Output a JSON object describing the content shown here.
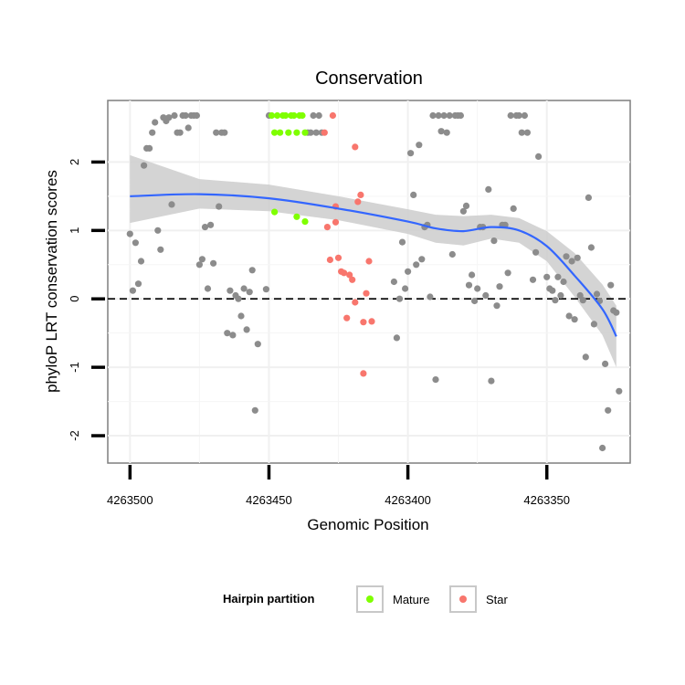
{
  "chart_data": {
    "type": "scatter",
    "title": "Conservation",
    "xlabel": "Genomic Position",
    "ylabel": "phyloP LRT conservation scores",
    "xlim": [
      4263508,
      4263320
    ],
    "ylim": [
      -2.4,
      2.9
    ],
    "x_reversed": true,
    "x_ticks": [
      4263500,
      4263450,
      4263400,
      4263350
    ],
    "x_tick_labels": [
      "4263500",
      "4263450",
      "4263400",
      "4263350"
    ],
    "y_ticks": [
      -2,
      -1,
      0,
      1,
      2
    ],
    "y_tick_labels": [
      "-2",
      "-1",
      "0",
      "1",
      "2"
    ],
    "reference_line": {
      "y": 0,
      "style": "dashed"
    },
    "legend": {
      "title": "Hairpin partition",
      "position": "bottom",
      "entries": [
        {
          "label": "Mature",
          "color": "#7fff00"
        },
        {
          "label": "Star",
          "color": "#f8766d"
        }
      ]
    },
    "colors": {
      "other": "#8c8c8c",
      "smooth": "#3366ff",
      "band": "#cccccc"
    },
    "smooth": {
      "x": [
        4263500,
        4263475,
        4263450,
        4263425,
        4263400,
        4263390,
        4263380,
        4263370,
        4263360,
        4263350,
        4263340,
        4263330,
        4263325
      ],
      "y": [
        1.5,
        1.53,
        1.47,
        1.32,
        1.13,
        1.03,
        0.99,
        1.05,
        1.0,
        0.77,
        0.34,
        -0.15,
        -0.55
      ],
      "lower": [
        1.11,
        1.32,
        1.28,
        1.15,
        0.95,
        0.82,
        0.78,
        0.88,
        0.82,
        0.55,
        0.03,
        -0.53,
        -1.0
      ],
      "upper": [
        2.1,
        1.75,
        1.67,
        1.5,
        1.31,
        1.23,
        1.21,
        1.23,
        1.18,
        0.99,
        0.67,
        0.21,
        -0.1
      ]
    },
    "series": [
      {
        "name": "Other",
        "points": [
          [
            4263500,
            0.95
          ],
          [
            4263499,
            0.12
          ],
          [
            4263498,
            0.82
          ],
          [
            4263497,
            0.22
          ],
          [
            4263496,
            0.55
          ],
          [
            4263495,
            1.95
          ],
          [
            4263494,
            2.2
          ],
          [
            4263493,
            2.2
          ],
          [
            4263492,
            2.43
          ],
          [
            4263491,
            2.58
          ],
          [
            4263490,
            1.0
          ],
          [
            4263489,
            0.72
          ],
          [
            4263488,
            2.65
          ],
          [
            4263487,
            2.6
          ],
          [
            4263486,
            2.65
          ],
          [
            4263485,
            1.38
          ],
          [
            4263484,
            2.68
          ],
          [
            4263483,
            2.43
          ],
          [
            4263482,
            2.43
          ],
          [
            4263481,
            2.68
          ],
          [
            4263480,
            2.68
          ],
          [
            4263479,
            2.5
          ],
          [
            4263478,
            2.68
          ],
          [
            4263477,
            2.68
          ],
          [
            4263476,
            2.68
          ],
          [
            4263475,
            0.5
          ],
          [
            4263474,
            0.58
          ],
          [
            4263473,
            1.05
          ],
          [
            4263472,
            0.15
          ],
          [
            4263471,
            1.08
          ],
          [
            4263470,
            0.52
          ],
          [
            4263469,
            2.43
          ],
          [
            4263468,
            1.35
          ],
          [
            4263467,
            2.43
          ],
          [
            4263466,
            2.43
          ],
          [
            4263465,
            -0.5
          ],
          [
            4263464,
            0.12
          ],
          [
            4263463,
            -0.53
          ],
          [
            4263462,
            0.05
          ],
          [
            4263461,
            0.0
          ],
          [
            4263460,
            -0.25
          ],
          [
            4263459,
            0.15
          ],
          [
            4263458,
            -0.45
          ],
          [
            4263457,
            0.1
          ],
          [
            4263456,
            0.42
          ],
          [
            4263455,
            -1.63
          ],
          [
            4263454,
            -0.66
          ],
          [
            4263451,
            0.14
          ],
          [
            4263450,
            2.68
          ],
          [
            4263436,
            2.43
          ],
          [
            4263435,
            2.43
          ],
          [
            4263434,
            2.68
          ],
          [
            4263433,
            2.43
          ],
          [
            4263432,
            2.68
          ],
          [
            4263431,
            2.43
          ],
          [
            4263405,
            0.25
          ],
          [
            4263404,
            -0.57
          ],
          [
            4263403,
            0.0
          ],
          [
            4263402,
            0.83
          ],
          [
            4263401,
            0.15
          ],
          [
            4263400,
            0.4
          ],
          [
            4263399,
            2.13
          ],
          [
            4263398,
            1.52
          ],
          [
            4263397,
            0.5
          ],
          [
            4263396,
            2.25
          ],
          [
            4263395,
            0.58
          ],
          [
            4263394,
            1.05
          ],
          [
            4263393,
            1.08
          ],
          [
            4263392,
            0.03
          ],
          [
            4263391,
            2.68
          ],
          [
            4263390,
            -1.18
          ],
          [
            4263389,
            2.68
          ],
          [
            4263388,
            2.45
          ],
          [
            4263387,
            2.68
          ],
          [
            4263386,
            2.43
          ],
          [
            4263385,
            2.68
          ],
          [
            4263384,
            0.65
          ],
          [
            4263383,
            2.68
          ],
          [
            4263382,
            2.68
          ],
          [
            4263381,
            2.68
          ],
          [
            4263380,
            1.28
          ],
          [
            4263379,
            1.36
          ],
          [
            4263378,
            0.2
          ],
          [
            4263377,
            0.35
          ],
          [
            4263376,
            -0.03
          ],
          [
            4263375,
            0.15
          ],
          [
            4263374,
            1.05
          ],
          [
            4263373,
            1.05
          ],
          [
            4263372,
            0.05
          ],
          [
            4263371,
            1.6
          ],
          [
            4263370,
            -1.2
          ],
          [
            4263369,
            0.85
          ],
          [
            4263368,
            -0.1
          ],
          [
            4263367,
            0.18
          ],
          [
            4263366,
            1.08
          ],
          [
            4263365,
            1.08
          ],
          [
            4263364,
            0.38
          ],
          [
            4263363,
            2.68
          ],
          [
            4263362,
            1.32
          ],
          [
            4263361,
            2.68
          ],
          [
            4263360,
            2.68
          ],
          [
            4263359,
            2.43
          ],
          [
            4263358,
            2.68
          ],
          [
            4263357,
            2.43
          ],
          [
            4263355,
            0.28
          ],
          [
            4263354,
            0.68
          ],
          [
            4263353,
            2.08
          ],
          [
            4263350,
            0.32
          ],
          [
            4263349,
            0.15
          ],
          [
            4263348,
            0.12
          ],
          [
            4263347,
            -0.02
          ],
          [
            4263346,
            0.32
          ],
          [
            4263345,
            0.05
          ],
          [
            4263344,
            0.25
          ],
          [
            4263343,
            0.62
          ],
          [
            4263342,
            -0.25
          ],
          [
            4263341,
            0.55
          ],
          [
            4263340,
            -0.3
          ],
          [
            4263339,
            0.6
          ],
          [
            4263338,
            0.05
          ],
          [
            4263337,
            -0.02
          ],
          [
            4263336,
            -0.85
          ],
          [
            4263335,
            1.48
          ],
          [
            4263334,
            0.75
          ],
          [
            4263333,
            -0.37
          ],
          [
            4263332,
            0.07
          ],
          [
            4263331,
            -0.03
          ],
          [
            4263330,
            -2.18
          ],
          [
            4263329,
            -0.95
          ],
          [
            4263328,
            -1.63
          ],
          [
            4263327,
            0.2
          ],
          [
            4263326,
            -0.17
          ],
          [
            4263325,
            -0.2
          ],
          [
            4263324,
            -1.35
          ]
        ]
      },
      {
        "name": "Mature",
        "points": [
          [
            4263449,
            2.68
          ],
          [
            4263448,
            2.43
          ],
          [
            4263447,
            2.68
          ],
          [
            4263446,
            2.43
          ],
          [
            4263445,
            2.68
          ],
          [
            4263444,
            2.68
          ],
          [
            4263443,
            2.43
          ],
          [
            4263442,
            2.68
          ],
          [
            4263441,
            2.68
          ],
          [
            4263440,
            2.43
          ],
          [
            4263439,
            2.68
          ],
          [
            4263438,
            2.68
          ],
          [
            4263437,
            2.43
          ],
          [
            4263448,
            1.27
          ],
          [
            4263440,
            1.2
          ],
          [
            4263437,
            1.13
          ]
        ]
      },
      {
        "name": "Star",
        "points": [
          [
            4263430,
            2.43
          ],
          [
            4263429,
            1.05
          ],
          [
            4263428,
            0.57
          ],
          [
            4263427,
            2.68
          ],
          [
            4263426,
            1.12
          ],
          [
            4263426,
            1.35
          ],
          [
            4263425,
            0.6
          ],
          [
            4263424,
            0.4
          ],
          [
            4263423,
            0.38
          ],
          [
            4263422,
            -0.28
          ],
          [
            4263421,
            0.35
          ],
          [
            4263420,
            0.28
          ],
          [
            4263419,
            2.22
          ],
          [
            4263419,
            -0.05
          ],
          [
            4263418,
            1.42
          ],
          [
            4263417,
            1.52
          ],
          [
            4263416,
            -0.34
          ],
          [
            4263416,
            -1.09
          ],
          [
            4263415,
            0.08
          ],
          [
            4263414,
            0.55
          ],
          [
            4263413,
            -0.33
          ]
        ]
      }
    ]
  }
}
